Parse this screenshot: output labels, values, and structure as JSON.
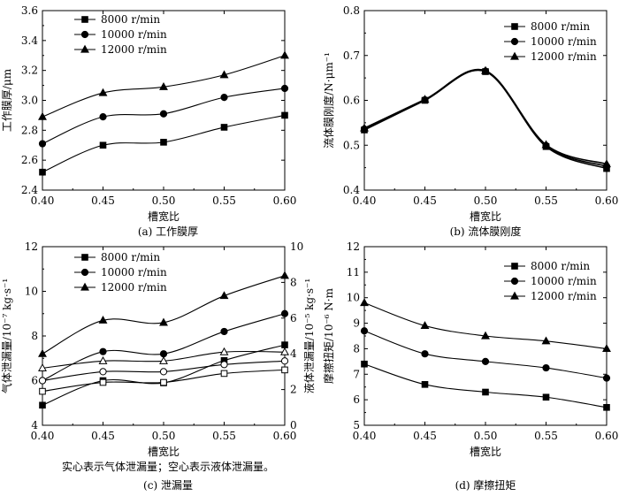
{
  "chart_data": [
    {
      "type": "line",
      "caption": "(a) 工作膜厚",
      "xlabel": "槽宽比",
      "ylabel": "工作膜厚/μm",
      "xlim": [
        0.4,
        0.6
      ],
      "ylim": [
        2.4,
        3.6
      ],
      "xticks": [
        "0.40",
        "0.45",
        "0.50",
        "0.55",
        "0.60"
      ],
      "yticks": [
        "2.4",
        "2.6",
        "2.8",
        "3.0",
        "3.2",
        "3.4",
        "3.6"
      ],
      "legend_position": "top-left",
      "x": [
        0.4,
        0.45,
        0.5,
        0.55,
        0.6
      ],
      "series": [
        {
          "name": "8000 r/min",
          "marker": "square",
          "values": [
            2.52,
            2.7,
            2.72,
            2.82,
            2.9
          ]
        },
        {
          "name": "10000 r/min",
          "marker": "circle",
          "values": [
            2.71,
            2.89,
            2.91,
            3.02,
            3.08
          ]
        },
        {
          "name": "12000 r/min",
          "marker": "triangle",
          "values": [
            2.89,
            3.05,
            3.09,
            3.17,
            3.3
          ]
        }
      ]
    },
    {
      "type": "line",
      "caption": "(b) 流体膜刚度",
      "xlabel": "槽宽比",
      "ylabel": "流体膜刚度/N·μm⁻¹",
      "xlim": [
        0.4,
        0.6
      ],
      "ylim": [
        0.4,
        0.8
      ],
      "xticks": [
        "0.40",
        "0.45",
        "0.50",
        "0.55",
        "0.60"
      ],
      "yticks": [
        "0.4",
        "0.5",
        "0.6",
        "0.7",
        "0.8"
      ],
      "legend_position": "top-right",
      "x": [
        0.4,
        0.45,
        0.5,
        0.55,
        0.6
      ],
      "series": [
        {
          "name": "8000 r/min",
          "marker": "square",
          "values": [
            0.534,
            0.6,
            0.664,
            0.497,
            0.448
          ]
        },
        {
          "name": "10000 r/min",
          "marker": "circle",
          "values": [
            0.536,
            0.601,
            0.665,
            0.499,
            0.453
          ]
        },
        {
          "name": "12000 r/min",
          "marker": "triangle",
          "values": [
            0.538,
            0.602,
            0.666,
            0.501,
            0.458
          ]
        }
      ]
    },
    {
      "type": "line",
      "caption": "(c) 泄漏量",
      "note": "实心表示气体泄漏量；空心表示液体泄漏量。",
      "xlabel": "槽宽比",
      "ylabel": "气体泄漏量/10⁻⁷ kg·s⁻¹",
      "ylabel_right": "液体泄漏量/10⁻⁵ kg·s⁻¹",
      "xlim": [
        0.4,
        0.6
      ],
      "ylim": [
        4,
        12
      ],
      "ylim_right": [
        0,
        10
      ],
      "xticks": [
        "0.40",
        "0.45",
        "0.50",
        "0.55",
        "0.60"
      ],
      "yticks": [
        "4",
        "6",
        "8",
        "10",
        "12"
      ],
      "yticks_right": [
        "0",
        "2",
        "4",
        "6",
        "8",
        "10"
      ],
      "legend_position": "top-left",
      "x": [
        0.4,
        0.45,
        0.5,
        0.55,
        0.6
      ],
      "series": [
        {
          "name": "8000 r/min",
          "marker": "square",
          "axis": "left",
          "values": [
            4.9,
            6.0,
            5.9,
            6.9,
            7.6
          ]
        },
        {
          "name": "10000 r/min",
          "marker": "circle",
          "axis": "left",
          "values": [
            6.0,
            7.3,
            7.2,
            8.2,
            9.0
          ]
        },
        {
          "name": "12000 r/min",
          "marker": "triangle",
          "axis": "left",
          "values": [
            7.2,
            8.7,
            8.6,
            9.8,
            10.7
          ]
        },
        {
          "name": "8000 r/min (液体)",
          "marker": "square-open",
          "axis": "right",
          "values": [
            1.9,
            2.4,
            2.4,
            2.9,
            3.1
          ]
        },
        {
          "name": "10000 r/min (液体)",
          "marker": "circle-open",
          "axis": "right",
          "values": [
            2.5,
            3.0,
            3.0,
            3.4,
            3.6
          ]
        },
        {
          "name": "12000 r/min (液体)",
          "marker": "triangle-open",
          "axis": "right",
          "values": [
            3.2,
            3.6,
            3.6,
            4.1,
            4.1
          ]
        }
      ]
    },
    {
      "type": "line",
      "caption": "(d) 摩擦扭矩",
      "xlabel": "槽宽比",
      "ylabel": "摩擦扭矩/10⁻⁶ N·m",
      "xlim": [
        0.4,
        0.6
      ],
      "ylim": [
        5,
        12
      ],
      "xticks": [
        "0.40",
        "0.45",
        "0.50",
        "0.55",
        "0.60"
      ],
      "yticks": [
        "5",
        "6",
        "7",
        "8",
        "9",
        "10",
        "11",
        "12"
      ],
      "legend_position": "top-right",
      "x": [
        0.4,
        0.45,
        0.5,
        0.55,
        0.6
      ],
      "series": [
        {
          "name": "8000 r/min",
          "marker": "square",
          "values": [
            7.4,
            6.6,
            6.3,
            6.1,
            5.7
          ]
        },
        {
          "name": "10000 r/min",
          "marker": "circle",
          "values": [
            8.7,
            7.8,
            7.5,
            7.25,
            6.85
          ]
        },
        {
          "name": "12000 r/min",
          "marker": "triangle",
          "values": [
            9.8,
            8.9,
            8.5,
            8.3,
            8.0
          ]
        }
      ]
    }
  ]
}
